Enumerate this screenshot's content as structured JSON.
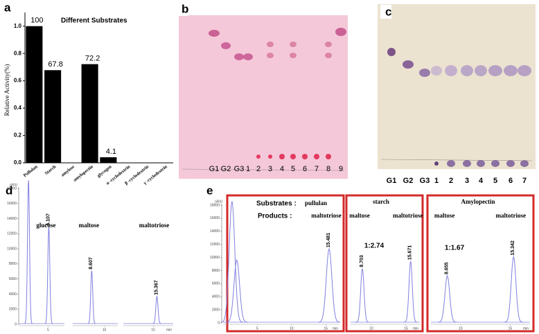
{
  "chart_data": [
    {
      "type": "bar",
      "panel_label": "a",
      "title": "Different Substrates",
      "ylabel": "Relative Activity(%)",
      "categories": [
        "Pullulan",
        "Starch",
        "amylose",
        "amylopectin",
        "glycogen",
        "α -cyclodextrin",
        "β -cyclodextrin",
        "γ -cyclodextrin"
      ],
      "values": [
        1.0,
        0.678,
        0,
        0.722,
        0.041,
        0,
        0,
        0
      ],
      "value_labels": [
        "100",
        "67.8",
        null,
        "72.2",
        "4.1",
        null,
        null,
        null
      ],
      "color": "#000000",
      "ylim": [
        0,
        1.1
      ],
      "yticks": [
        {
          "value": 0,
          "label": "0.0"
        },
        0.2,
        0.4,
        0.6,
        0.8,
        {
          "value": 1,
          "label": "1.0"
        }
      ]
    },
    {
      "type": "tlc",
      "panel_label": "b",
      "color": "#f4c8d8",
      "lanes": [
        "G1",
        "G2",
        "G3",
        "1",
        "2",
        "3",
        "4",
        "5",
        "6",
        "7",
        "8",
        "9"
      ]
    },
    {
      "type": "tlc",
      "panel_label": "c",
      "color": "#ebe3d0",
      "lanes": [
        "G1",
        "G2",
        "G3",
        "1",
        "2",
        "3",
        "4",
        "5",
        "6",
        "7"
      ]
    },
    {
      "type": "chromatogram",
      "panel_label": "d",
      "yunit": "nRIU",
      "color": "#7f7fe0",
      "ylim": [
        0,
        18000
      ],
      "yticks": [
        0,
        2000,
        4000,
        6000,
        8000,
        10000,
        12000,
        14000,
        16000,
        18000
      ],
      "segments": [
        {
          "xlim": [
            0.5,
            7.5
          ],
          "xticks": [
            5
          ],
          "compounds": [
            "glucose"
          ],
          "peaks": [
            {
              "time": 5.107,
              "height": 12800
            }
          ],
          "unlabeled_peaks": [
            {
              "time": 2.0,
              "height": 19000
            }
          ]
        },
        {
          "xlim": [
            6.5,
            11.5
          ],
          "xticks": [
            10
          ],
          "compounds": [
            "maltose"
          ],
          "peaks": [
            {
              "time": 8.607,
              "height": 7000
            }
          ]
        },
        {
          "xlim": [
            12,
            17
          ],
          "xticks": [
            15
          ],
          "xlabel": "min",
          "compounds": [
            "maltotriose"
          ],
          "peaks": [
            {
              "time": 15.367,
              "height": 3600
            }
          ]
        }
      ]
    },
    {
      "type": "chromatogram",
      "panel_label": "e",
      "yunit": "nRIU",
      "color": "#7f7fe0",
      "ylim": [
        0,
        18000
      ],
      "yticks": [
        0,
        2000,
        4000,
        6000,
        8000,
        10000,
        12000,
        14000,
        16000,
        18000
      ],
      "segments": [
        {
          "substrates_label": "Substrates :",
          "substrate": "pullulan",
          "products_label": "Products :",
          "xlim": [
            0,
            17
          ],
          "xticks": [
            5,
            10,
            15
          ],
          "xlabel": "min",
          "compounds": [
            "maltotriose"
          ],
          "peaks": [
            {
              "time": 15.481,
              "height": 11200
            }
          ],
          "unlabeled_peaks": [
            {
              "time": 1.3,
              "height": 18500
            },
            {
              "time": 2.0,
              "height": 9500
            }
          ]
        },
        {
          "substrate": "starch",
          "ratio": "1:2.74",
          "xlim": [
            7,
            17
          ],
          "xticks": [
            10,
            15
          ],
          "xlabel": "min",
          "compounds": [
            "maltose",
            "maltotriose"
          ],
          "peaks": [
            {
              "time": 8.703,
              "height": 8200
            },
            {
              "time": 15.671,
              "height": 9300
            }
          ]
        },
        {
          "substrate": "Amylopectin",
          "ratio": "1:1.67",
          "xlim": [
            7,
            17
          ],
          "xticks": [
            10,
            15
          ],
          "xlabel": "min",
          "compounds": [
            "maltose",
            "maltotriose"
          ],
          "peaks": [
            {
              "time": 8.655,
              "height": 7100
            },
            {
              "time": 15.342,
              "height": 10000
            }
          ]
        }
      ]
    }
  ]
}
